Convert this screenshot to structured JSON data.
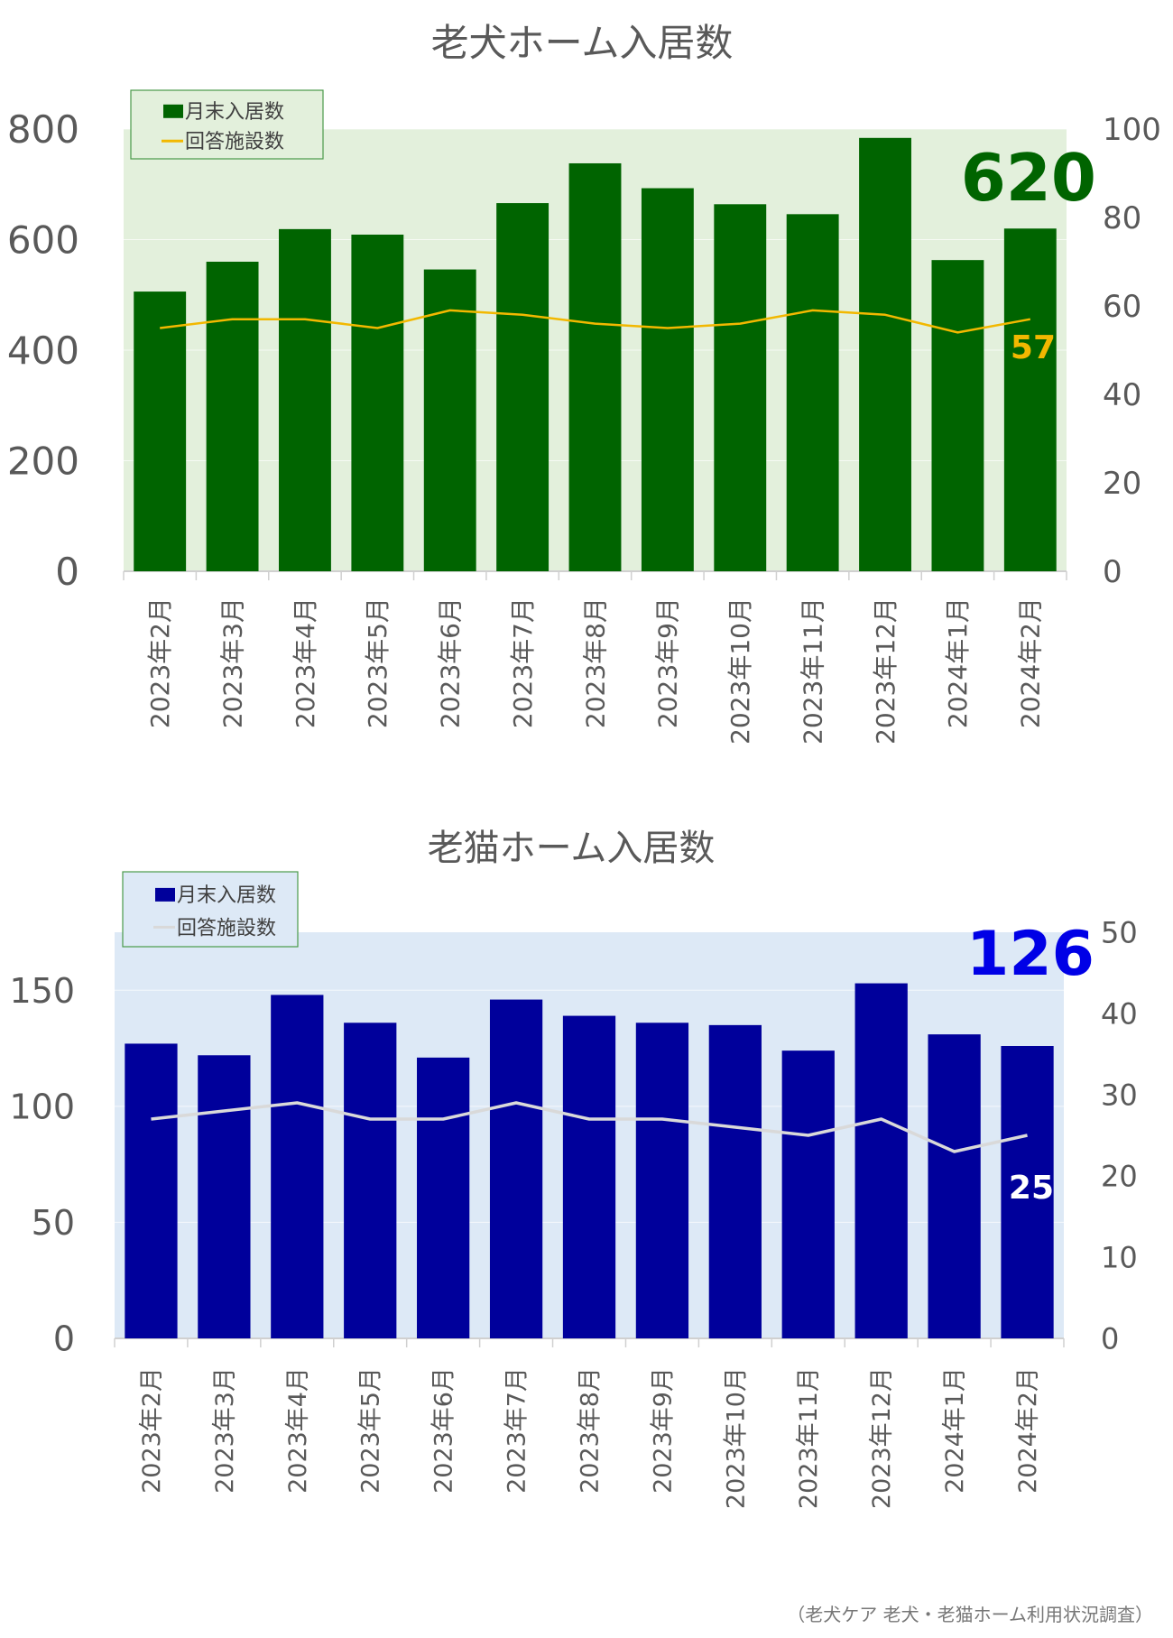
{
  "source_note": "（老犬ケア 老犬・老猫ホーム利用状況調査）",
  "chart_data": [
    {
      "type": "bar",
      "title": "老犬ホーム入居数",
      "categories": [
        "2023年2月",
        "2023年3月",
        "2023年4月",
        "2023年5月",
        "2023年6月",
        "2023年7月",
        "2023年8月",
        "2023年9月",
        "2023年10月",
        "2023年11月",
        "2023年12月",
        "2024年1月",
        "2024年2月"
      ],
      "series": [
        {
          "name": "月末入居数",
          "kind": "bar",
          "axis": "left",
          "color": "#006400",
          "values": [
            506,
            560,
            619,
            609,
            546,
            666,
            738,
            693,
            664,
            646,
            784,
            563,
            620
          ]
        },
        {
          "name": "回答施設数",
          "kind": "line",
          "axis": "right",
          "color": "#f2b800",
          "values": [
            55,
            57,
            57,
            55,
            59,
            58,
            56,
            55,
            56,
            59,
            58,
            54,
            57
          ]
        }
      ],
      "ylim": [
        0,
        800
      ],
      "y_ticks": [
        "0",
        "200",
        "400",
        "600",
        "800"
      ],
      "y2lim": [
        0,
        100
      ],
      "y2_ticks": [
        "0",
        "20",
        "40",
        "60",
        "80",
        "100"
      ],
      "plot_background": "#e3f0dc",
      "callout_bar": "620",
      "callout_line": "57",
      "callout_bar_color": "#006400",
      "callout_line_color": "#f2b800",
      "legend_position": "top-left",
      "grid": true
    },
    {
      "type": "bar",
      "title": "老猫ホーム入居数",
      "categories": [
        "2023年2月",
        "2023年3月",
        "2023年4月",
        "2023年5月",
        "2023年6月",
        "2023年7月",
        "2023年8月",
        "2023年9月",
        "2023年10月",
        "2023年11月",
        "2023年12月",
        "2024年1月",
        "2024年2月"
      ],
      "series": [
        {
          "name": "月末入居数",
          "kind": "bar",
          "axis": "left",
          "color": "#00009b",
          "values": [
            127,
            122,
            148,
            136,
            121,
            146,
            139,
            136,
            135,
            124,
            153,
            131,
            126
          ]
        },
        {
          "name": "回答施設数",
          "kind": "line",
          "axis": "right",
          "color": "#d9d9d9",
          "values": [
            27,
            28,
            29,
            27,
            27,
            29,
            27,
            27,
            26,
            25,
            27,
            23,
            25
          ]
        }
      ],
      "ylim": [
        0,
        175
      ],
      "y_ticks": [
        "0",
        "50",
        "100",
        "150"
      ],
      "y2lim": [
        0,
        50
      ],
      "y2_ticks": [
        "0",
        "10",
        "20",
        "30",
        "40",
        "50"
      ],
      "plot_background": "#dde9f6",
      "callout_bar": "126",
      "callout_line": "25",
      "callout_bar_color": "#0000e6",
      "callout_line_color": "#ffffff",
      "legend_position": "top-left",
      "grid": true
    }
  ]
}
